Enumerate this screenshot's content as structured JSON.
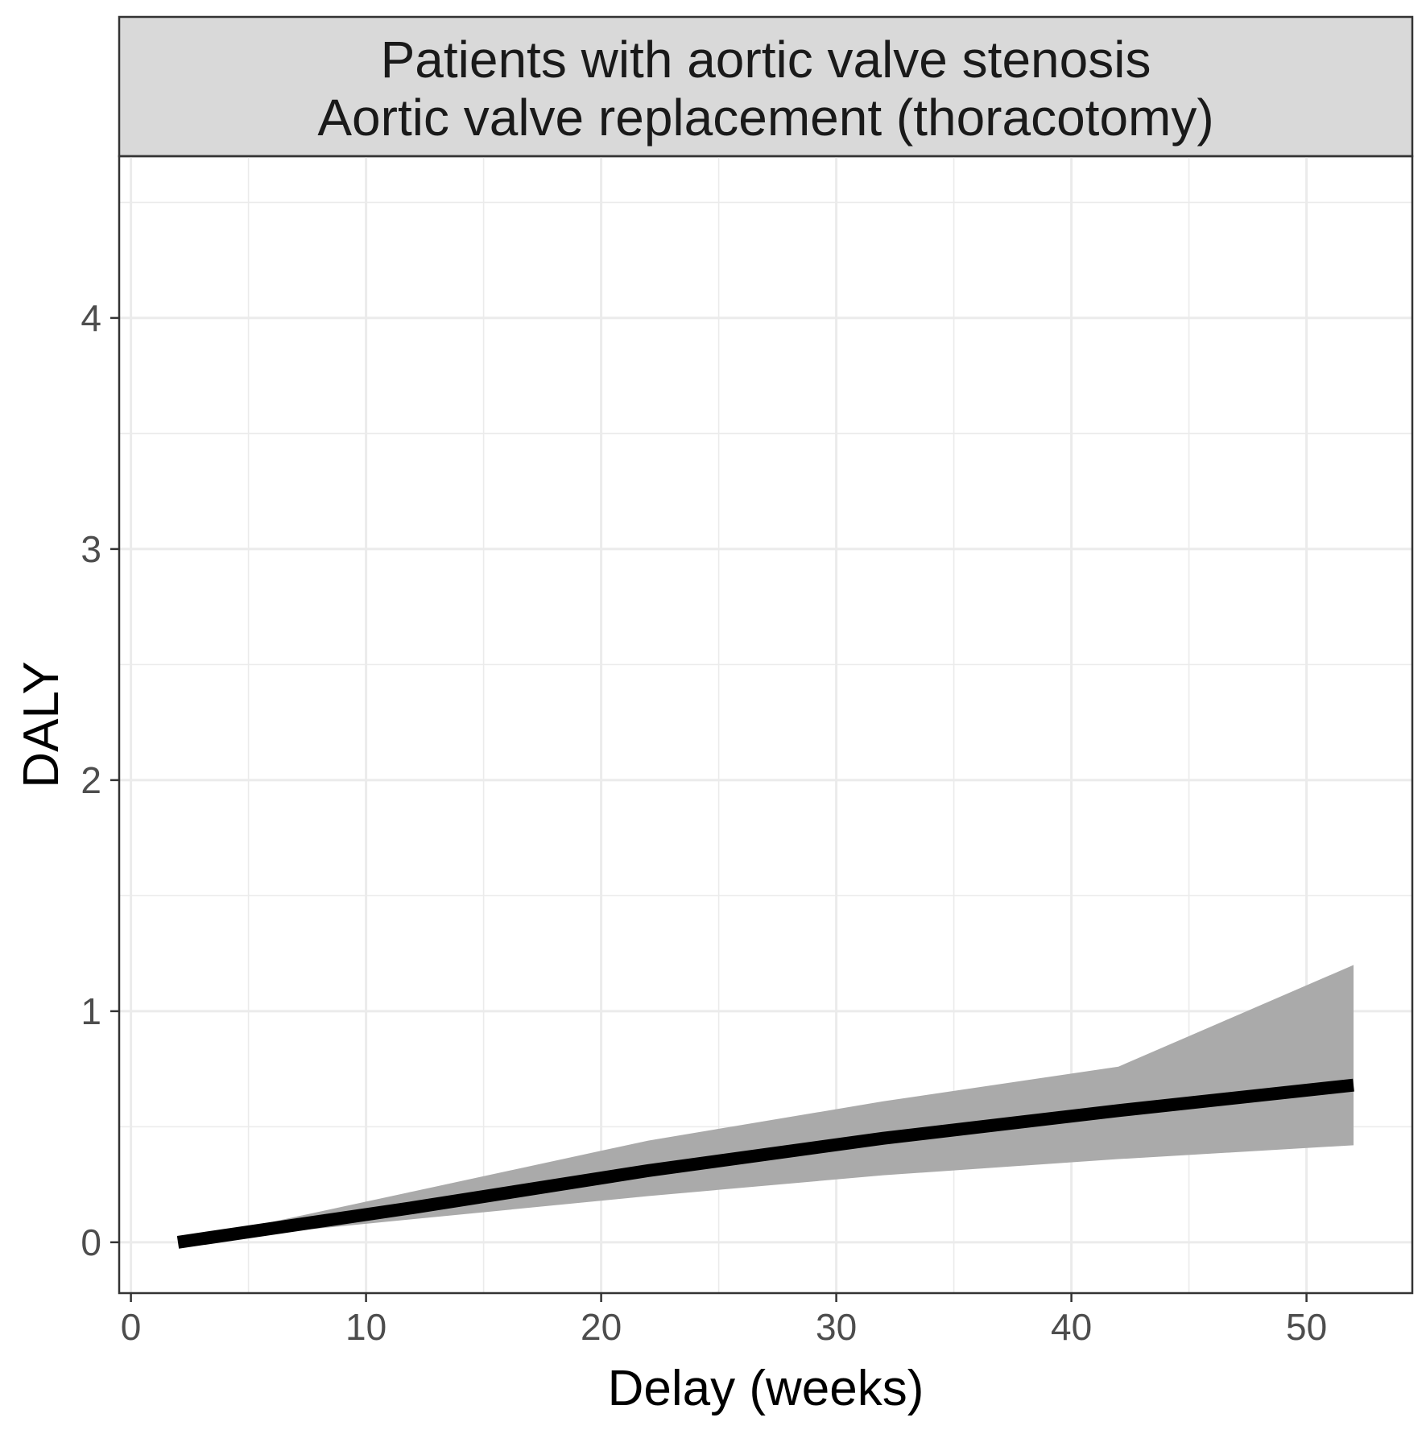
{
  "chart_data": {
    "type": "line",
    "title_lines": [
      "Patients with aortic valve stenosis",
      "Aortic valve replacement (thoracotomy)"
    ],
    "xlabel": "Delay (weeks)",
    "ylabel": "DALY",
    "x_ticks": [
      0,
      10,
      20,
      30,
      40,
      50
    ],
    "y_ticks": [
      0,
      1,
      2,
      3,
      4
    ],
    "xlim": [
      -0.5,
      54.5
    ],
    "ylim": [
      -0.22,
      4.7
    ],
    "grid": true,
    "series": [
      {
        "x": [
          2,
          12,
          22,
          32,
          42,
          52
        ],
        "y": [
          0.0,
          0.15,
          0.31,
          0.45,
          0.57,
          0.68
        ],
        "lower": [
          0.0,
          0.1,
          0.2,
          0.29,
          0.36,
          0.42
        ],
        "upper": [
          0.0,
          0.22,
          0.44,
          0.61,
          0.76,
          1.2
        ],
        "line_color": "#000000",
        "band_color": "#aaaaaa"
      }
    ]
  }
}
